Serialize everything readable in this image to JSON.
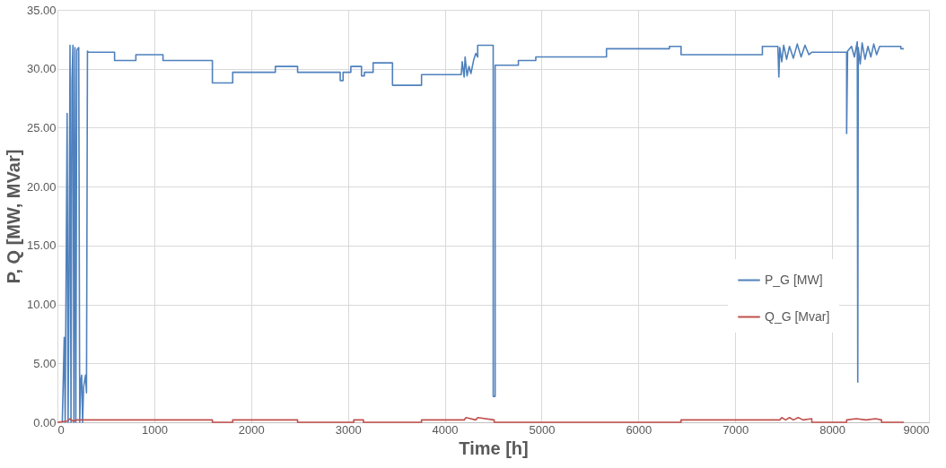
{
  "chart_data": {
    "type": "line",
    "xlabel": "Time [h]",
    "ylabel": "P, Q [MW, MVar]",
    "xlim": [
      0,
      9000
    ],
    "xticks": [
      0,
      1000,
      2000,
      3000,
      4000,
      5000,
      6000,
      7000,
      8000,
      9000
    ],
    "ylim": [
      0,
      35
    ],
    "yticks": [
      {
        "value": 0,
        "label": "0.00"
      },
      {
        "value": 5,
        "label": "5.00"
      },
      {
        "value": 10,
        "label": "10.00"
      },
      {
        "value": 15,
        "label": "15.00"
      },
      {
        "value": 20,
        "label": "20.00"
      },
      {
        "value": 25,
        "label": "25.00"
      },
      {
        "value": 30,
        "label": "30.00"
      },
      {
        "value": 35,
        "label": "35.00"
      }
    ],
    "grid": true,
    "legend": "bottom right",
    "marker": "none",
    "line_style": "solid",
    "series": [
      {
        "name": "P_G [MW]",
        "color": "#4f81bd",
        "x": [
          50,
          70,
          80,
          100,
          110,
          120,
          130,
          140,
          150,
          160,
          170,
          180,
          190,
          200,
          220,
          230,
          240,
          250,
          260,
          270,
          290,
          300,
          310,
          320,
          590,
          590,
          810,
          810,
          1090,
          1090,
          1600,
          1600,
          1810,
          1810,
          2250,
          2250,
          2480,
          2480,
          2920,
          2920,
          2950,
          2950,
          3030,
          3030,
          3140,
          3140,
          3170,
          3170,
          3260,
          3260,
          3460,
          3460,
          3760,
          3760,
          4170,
          4180,
          4200,
          4210,
          4230,
          4250,
          4270,
          4300,
          4320,
          4340,
          4340,
          4500,
          4500,
          4520,
          4520,
          4760,
          4760,
          4940,
          4940,
          5670,
          5670,
          6320,
          6320,
          6440,
          6440,
          7280,
          7280,
          7440,
          7450,
          7460,
          7480,
          7500,
          7530,
          7560,
          7600,
          7640,
          7680,
          7720,
          7760,
          7790,
          8150,
          8150,
          8160,
          8200,
          8230,
          8260,
          8265,
          8270,
          8290,
          8310,
          8340,
          8370,
          8400,
          8430,
          8460,
          8490,
          8510,
          8710,
          8710,
          8740
        ],
        "values": [
          0,
          7.2,
          0,
          26.2,
          0,
          12.5,
          32,
          0,
          29,
          32,
          0,
          31.8,
          0,
          31.6,
          31.8,
          0,
          3.5,
          4,
          0,
          3,
          4,
          2.5,
          31.5,
          31.4,
          31.4,
          30.7,
          30.7,
          31.2,
          31.2,
          30.7,
          30.7,
          28.8,
          28.8,
          29.7,
          29.7,
          30.2,
          30.2,
          29.7,
          29.7,
          29.0,
          29.0,
          29.7,
          29.7,
          30.2,
          30.2,
          29.4,
          29.4,
          29.7,
          29.7,
          30.5,
          30.5,
          28.6,
          28.6,
          29.5,
          29.5,
          30.6,
          29.3,
          31.0,
          29.4,
          30.2,
          29.6,
          30.8,
          31.3,
          31.0,
          32.0,
          32.0,
          2.2,
          2.2,
          30.3,
          30.3,
          30.7,
          30.7,
          31.0,
          31.0,
          31.7,
          31.7,
          31.9,
          31.9,
          31.2,
          31.2,
          31.9,
          31.9,
          29.3,
          31.8,
          30.6,
          32.0,
          30.8,
          31.9,
          30.9,
          32.1,
          31.0,
          32.0,
          31.2,
          31.4,
          31.4,
          24.5,
          31.5,
          31.9,
          31.0,
          32.3,
          3.4,
          31.8,
          30.4,
          32.2,
          30.8,
          31.9,
          31.0,
          32.1,
          31.2,
          31.9,
          31.9,
          31.9,
          31.7,
          31.7
        ]
      },
      {
        "name": "Q_G [Mvar]",
        "color": "#c0504d",
        "x": [
          0,
          100,
          130,
          160,
          200,
          300,
          1600,
          1600,
          1810,
          1810,
          2480,
          2480,
          3060,
          3060,
          3160,
          3160,
          3760,
          3760,
          4200,
          4220,
          4320,
          4340,
          4510,
          4510,
          6440,
          6440,
          7460,
          7480,
          7520,
          7560,
          7600,
          7650,
          7700,
          7790,
          7790,
          8150,
          8150,
          8250,
          8350,
          8450,
          8510,
          8510,
          8740
        ],
        "values": [
          0,
          0.1,
          0.3,
          0.1,
          0.2,
          0.2,
          0.2,
          0,
          0,
          0.2,
          0.2,
          0,
          0,
          0.2,
          0.2,
          0,
          0,
          0.2,
          0.2,
          0.4,
          0.2,
          0.4,
          0.2,
          0,
          0,
          0.2,
          0.2,
          0.4,
          0.2,
          0.4,
          0.2,
          0.4,
          0.2,
          0.3,
          0,
          0,
          0.2,
          0.3,
          0.2,
          0.3,
          0.2,
          0,
          0
        ]
      }
    ]
  }
}
